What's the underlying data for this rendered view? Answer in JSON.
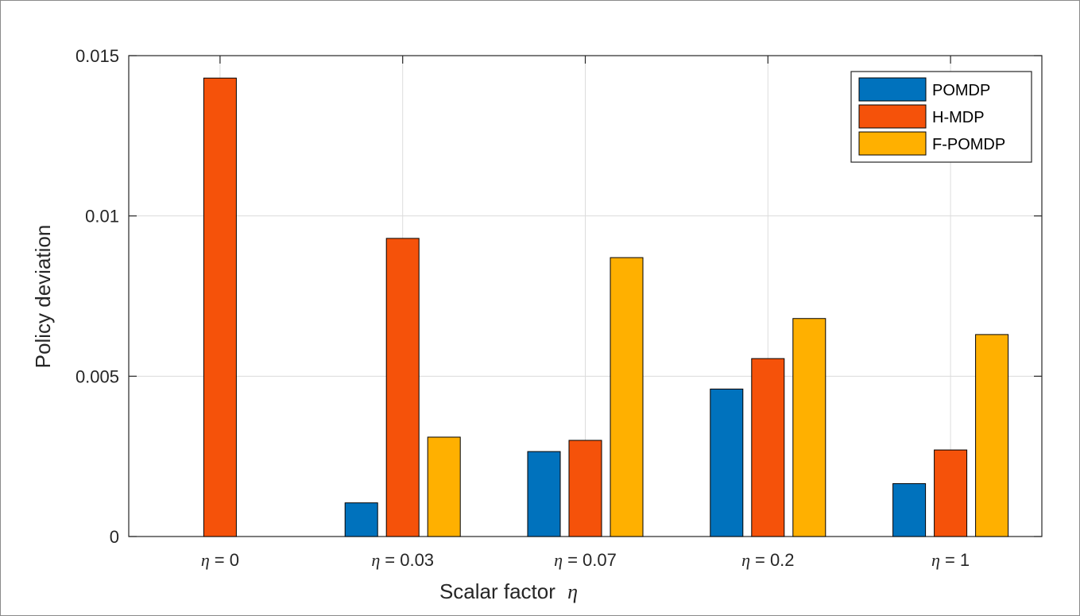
{
  "chart_data": {
    "type": "bar",
    "categories": [
      "η = 0",
      "η = 0.03",
      "η = 0.07",
      "η = 0.2",
      "η = 1"
    ],
    "series": [
      {
        "name": "POMDP",
        "values": [
          0,
          0.00105,
          0.00265,
          0.0046,
          0.00165
        ],
        "color": "#0072BD"
      },
      {
        "name": "H-MDP",
        "values": [
          0.0143,
          0.0093,
          0.003,
          0.00555,
          0.0027
        ],
        "color": "#F5520A"
      },
      {
        "name": "F-POMDP",
        "values": [
          0,
          0.0031,
          0.0087,
          0.0068,
          0.0063
        ],
        "color": "#FFB000"
      }
    ],
    "yticks": [
      "0",
      "0.005",
      "0.01",
      "0.015"
    ],
    "ytick_values": [
      0,
      0.005,
      0.01,
      0.015
    ],
    "xlabel_text": "Scalar factor",
    "xlabel_symbol": "η",
    "ylabel": "Policy deviation",
    "ylim": [
      0,
      0.015
    ],
    "grid": true,
    "legend_position": "top-right"
  }
}
